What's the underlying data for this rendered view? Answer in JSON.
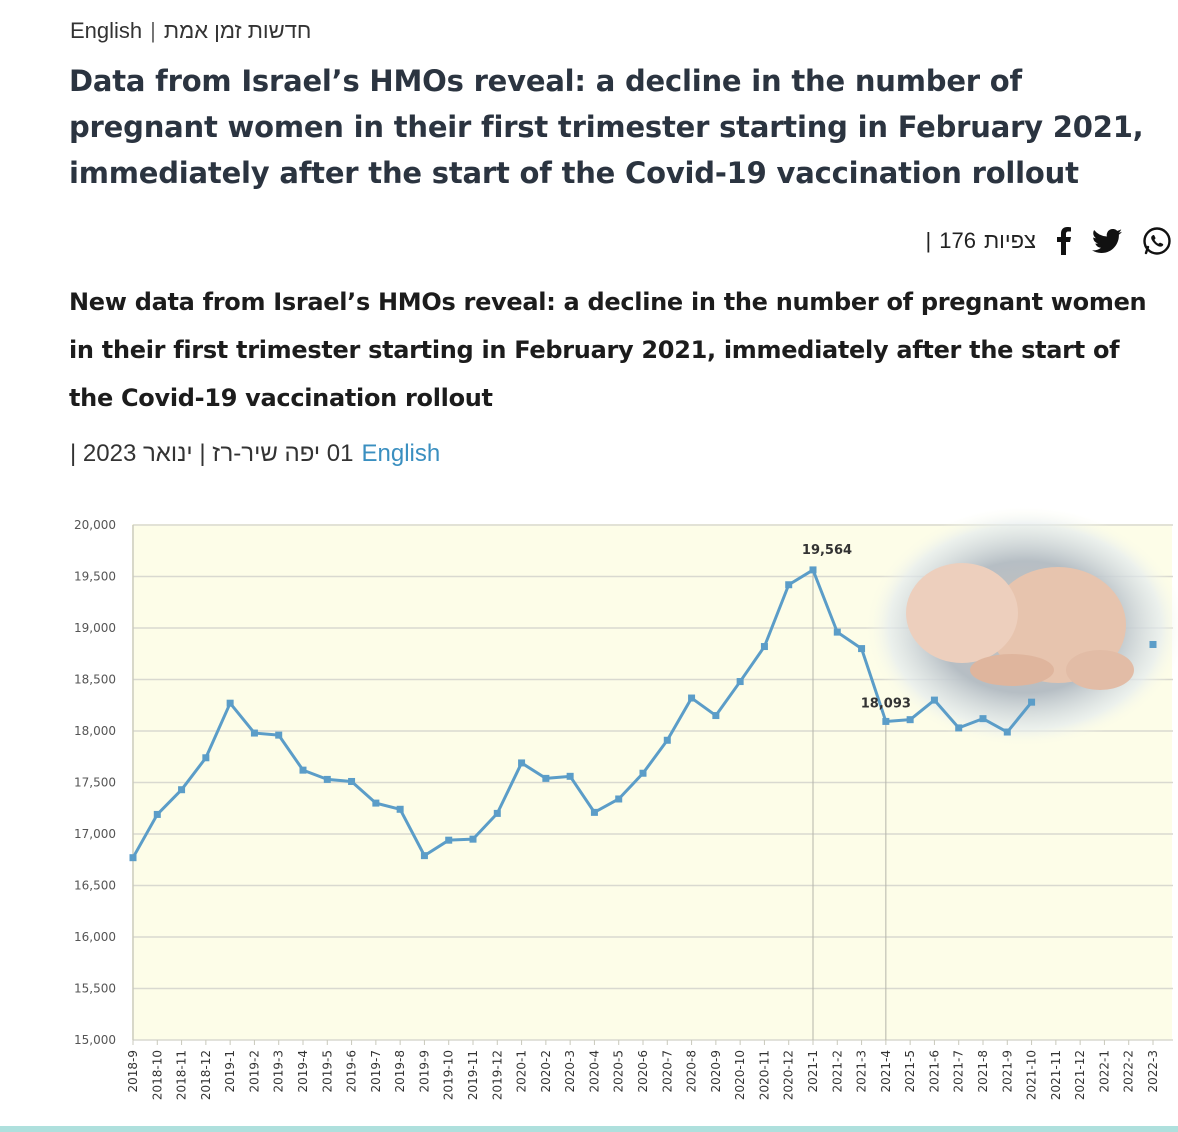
{
  "topbar": {
    "lang_label": "English",
    "section_label": "חדשות זמן אמת"
  },
  "headline": "Data from Israel’s HMOs reveal: a decline in the number of pregnant women in their first trimester starting in February 2021, immediately after the start of the Covid-19 vaccination rollout",
  "share": {
    "views_label": "צפיות",
    "views_count": "176",
    "icons": [
      "facebook-icon",
      "twitter-icon",
      "whatsapp-icon"
    ]
  },
  "lead": "New data from Israel’s HMOs reveal: a decline in the number of pregnant women in their first trimester starting in February 2021, immediately after the start of the Covid-19 vaccination rollout",
  "meta": {
    "date_author": "01 יפה שיר-רז | ינואר 2023 |",
    "lang_link": "English"
  },
  "colors": {
    "line": "#5b9dc8",
    "plot_bg": "#fdfde8",
    "grid": "#d9d9d0",
    "link": "#3a8fc0"
  },
  "chart_data": {
    "type": "line",
    "title": "",
    "xlabel": "",
    "ylabel": "",
    "ylim": [
      15000,
      20000
    ],
    "yticks": [
      "15,000",
      "15,500",
      "16,000",
      "16,500",
      "17,000",
      "17,500",
      "18,000",
      "18,500",
      "19,000",
      "19,500",
      "20,000"
    ],
    "grid": true,
    "legend": "none",
    "categories": [
      "2018-9",
      "2018-10",
      "2018-11",
      "2018-12",
      "2019-1",
      "2019-2",
      "2019-3",
      "2019-4",
      "2019-5",
      "2019-6",
      "2019-7",
      "2019-8",
      "2019-9",
      "2019-10",
      "2019-11",
      "2019-12",
      "2020-1",
      "2020-2",
      "2020-3",
      "2020-4",
      "2020-5",
      "2020-6",
      "2020-7",
      "2020-8",
      "2020-9",
      "2020-10",
      "2020-11",
      "2020-12",
      "2021-1",
      "2021-2",
      "2021-3",
      "2021-4",
      "2021-5",
      "2021-6",
      "2021-7",
      "2021-8",
      "2021-9",
      "2021-10",
      "2021-11",
      "2021-12",
      "2022-1",
      "2022-2",
      "2022-3"
    ],
    "values": [
      16770,
      17190,
      17430,
      17740,
      18270,
      17980,
      17960,
      17620,
      17530,
      17510,
      17300,
      17240,
      16790,
      16940,
      16950,
      17200,
      17690,
      17540,
      17560,
      17210,
      17340,
      17590,
      17910,
      18320,
      18150,
      18480,
      18820,
      19420,
      19564,
      18960,
      18800,
      18093,
      18110,
      18300,
      18030,
      18120,
      17990,
      18280,
      null,
      null,
      null,
      null,
      18840
    ],
    "annotations": [
      {
        "text": "19,564",
        "category": "2021-1",
        "value": 19564
      },
      {
        "text": "18,093",
        "category": "2021-4",
        "value": 18093
      }
    ]
  }
}
